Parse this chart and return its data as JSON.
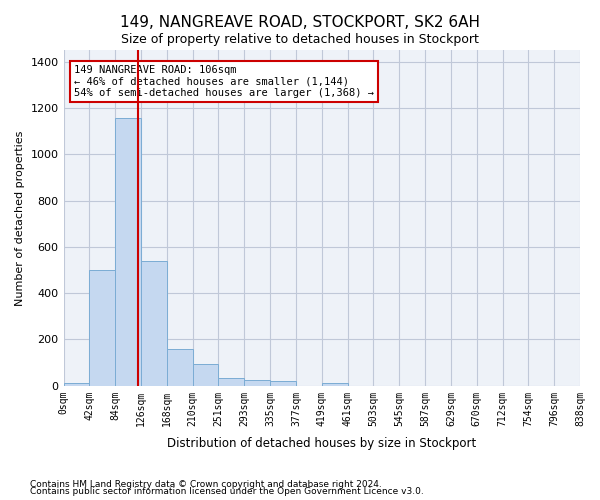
{
  "title": "149, NANGREAVE ROAD, STOCKPORT, SK2 6AH",
  "subtitle": "Size of property relative to detached houses in Stockport",
  "xlabel": "Distribution of detached houses by size in Stockport",
  "ylabel": "Number of detached properties",
  "footnote1": "Contains HM Land Registry data © Crown copyright and database right 2024.",
  "footnote2": "Contains public sector information licensed under the Open Government Licence v3.0.",
  "bar_color": "#c5d8f0",
  "bar_edge_color": "#7bacd4",
  "grid_color": "#c0c8d8",
  "bg_color": "#eef2f8",
  "annotation_box_color": "#cc0000",
  "red_line_color": "#cc0000",
  "bin_edges": [
    "0sqm",
    "42sqm",
    "84sqm",
    "126sqm",
    "168sqm",
    "210sqm",
    "251sqm",
    "293sqm",
    "335sqm",
    "377sqm",
    "419sqm",
    "461sqm",
    "503sqm",
    "545sqm",
    "587sqm",
    "629sqm",
    "670sqm",
    "712sqm",
    "754sqm",
    "796sqm",
    "838sqm"
  ],
  "bar_heights": [
    10,
    500,
    1155,
    540,
    160,
    95,
    35,
    25,
    20,
    0,
    10,
    0,
    0,
    0,
    0,
    0,
    0,
    0,
    0,
    0
  ],
  "property_label": "149 NANGREAVE ROAD: 106sqm",
  "annotation_line1": "← 46% of detached houses are smaller (1,144)",
  "annotation_line2": "54% of semi-detached houses are larger (1,368) →",
  "red_line_x": 2.38,
  "ylim": [
    0,
    1450
  ],
  "yticks": [
    0,
    200,
    400,
    600,
    800,
    1000,
    1200,
    1400
  ]
}
